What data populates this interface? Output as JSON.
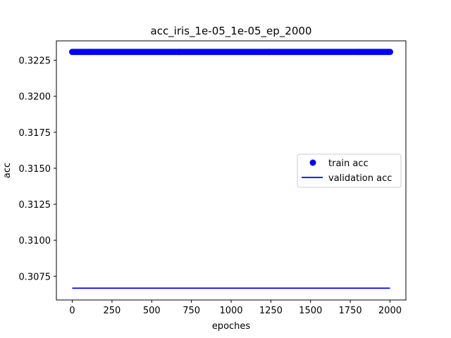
{
  "chart_data": {
    "type": "line",
    "title": "acc_iris_1e-05_1e-05_ep_2000",
    "xlabel": "epoches",
    "ylabel": "acc",
    "xlim": [
      -100,
      2100
    ],
    "ylim": [
      0.30585,
      0.32385
    ],
    "xticks": [
      0,
      250,
      500,
      750,
      1000,
      1250,
      1500,
      1750,
      2000
    ],
    "xtick_labels": [
      "0",
      "250",
      "500",
      "750",
      "1000",
      "1250",
      "1500",
      "1750",
      "2000"
    ],
    "yticks": [
      0.3075,
      0.31,
      0.3125,
      0.315,
      0.3175,
      0.32,
      0.3225
    ],
    "ytick_labels": [
      "0.3075",
      "0.3100",
      "0.3125",
      "0.3150",
      "0.3175",
      "0.3200",
      "0.3225"
    ],
    "grid": false,
    "legend_position": "center-right",
    "series": [
      {
        "name": "train acc",
        "style": "markers",
        "color": "#0000ff",
        "x_start": 0,
        "x_end": 2000,
        "value": 0.32308
      },
      {
        "name": "validation acc",
        "style": "line",
        "color": "#0000ff",
        "x_start": 0,
        "x_end": 2000,
        "value": 0.30667
      }
    ]
  }
}
